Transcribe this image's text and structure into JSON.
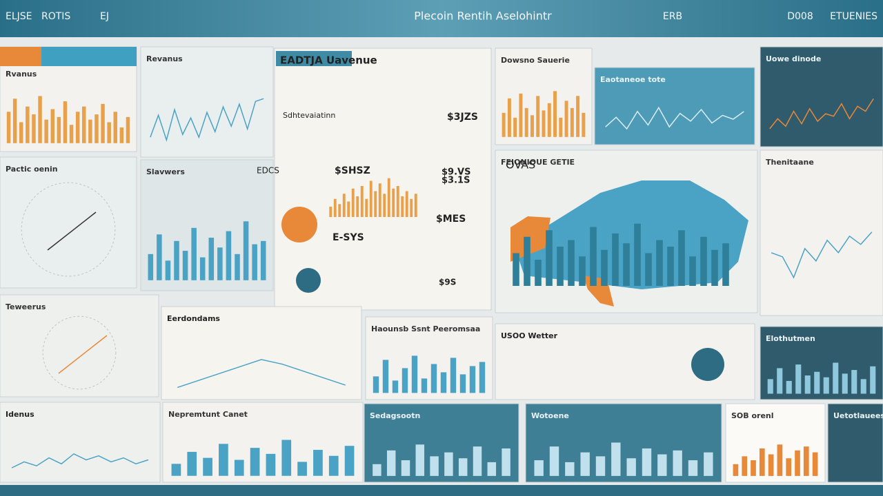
{
  "header": {
    "items": [
      "ELJSE",
      "ROTIS",
      "EJ",
      "Plecoin Rentih Aselohintr",
      "ERB",
      "D008",
      "ETUENIES"
    ]
  },
  "panels": [
    {
      "title": "Rvanus",
      "chart": {
        "type": "bar",
        "color": "#e8a04a",
        "ylim": [
          0,
          100
        ],
        "values": [
          60,
          85,
          40,
          70,
          55,
          90,
          45,
          65,
          50,
          80,
          35,
          60,
          70,
          45,
          55,
          75,
          40,
          60,
          30,
          50
        ]
      }
    },
    {
      "title": "Revanus",
      "chart": {
        "type": "line",
        "color": "#4aa3c4",
        "ylim": [
          0,
          100
        ],
        "values": [
          20,
          60,
          15,
          70,
          25,
          55,
          20,
          65,
          30,
          75,
          40,
          80,
          35,
          85,
          90
        ]
      }
    },
    {
      "title": "EADTJA Uavenue",
      "texts": [
        "Sdhtevaiatinn",
        "$3JZS",
        "$SHSZ",
        "$3.1S",
        "$9.VS",
        "E-SYS",
        "$MES",
        "$9S"
      ],
      "chart": {
        "type": "bar",
        "color": "#e8a04a",
        "ylim": [
          0,
          100
        ],
        "values": [
          20,
          35,
          25,
          45,
          30,
          55,
          40,
          60,
          35,
          70,
          50,
          65,
          45,
          75,
          55,
          60,
          40,
          50,
          35,
          45
        ]
      }
    },
    {
      "title": "Dowsno Sauerie",
      "chart": {
        "type": "bar",
        "color": "#e8a04a",
        "ylim": [
          0,
          100
        ],
        "values": [
          50,
          80,
          40,
          90,
          60,
          45,
          85,
          55,
          70,
          95,
          40,
          75,
          60,
          85,
          50
        ]
      }
    },
    {
      "title": "Eaotaneoe tote",
      "chart": {
        "type": "line",
        "color": "#d9eef5",
        "ylim": [
          0,
          100
        ],
        "values": [
          30,
          55,
          25,
          70,
          35,
          80,
          30,
          65,
          45,
          75,
          40,
          60,
          50,
          70
        ]
      }
    },
    {
      "title": "Uowe dinode",
      "chart": {
        "type": "line",
        "color": "#e8893a",
        "ylim": [
          0,
          100
        ],
        "values": [
          20,
          40,
          25,
          55,
          30,
          60,
          35,
          50,
          45,
          70,
          40,
          65,
          55,
          80
        ]
      }
    },
    {
      "title": "Pactic oenin"
    },
    {
      "title": "Slavwers",
      "texts": [
        "EDCS"
      ],
      "chart": {
        "type": "bar",
        "color": "#4aa3c4",
        "ylim": [
          0,
          100
        ],
        "values": [
          40,
          70,
          30,
          60,
          45,
          80,
          35,
          65,
          50,
          75,
          40,
          90,
          55,
          60
        ]
      }
    },
    {
      "title": "FEIONIOUE GETIE",
      "texts": [
        "OVAS"
      ],
      "chart": {
        "type": "bar",
        "color": "#2d7f9a",
        "ylim": [
          0,
          100
        ],
        "values": [
          50,
          75,
          40,
          85,
          60,
          70,
          45,
          90,
          55,
          80,
          65,
          95,
          50,
          70,
          60,
          85,
          45,
          75,
          55,
          65
        ]
      }
    },
    {
      "title": "Thenitaane",
      "chart": {
        "type": "line",
        "color": "#4aa3c4",
        "ylim": [
          0,
          100
        ],
        "values": [
          60,
          55,
          30,
          65,
          50,
          75,
          60,
          80,
          70,
          85
        ]
      }
    },
    {
      "title": "Teweerus"
    },
    {
      "title": "Eerdondams",
      "chart": {
        "type": "line",
        "color": "#4aa3c4",
        "ylim": [
          0,
          100
        ],
        "values": [
          10,
          25,
          40,
          55,
          70,
          60,
          45,
          30,
          15
        ]
      }
    },
    {
      "title": "Haounsb Ssnt Peeromsaa",
      "chart": {
        "type": "bar",
        "color": "#4aa3c4",
        "ylim": [
          0,
          100
        ],
        "values": [
          40,
          80,
          30,
          60,
          90,
          35,
          70,
          50,
          85,
          45,
          65,
          75
        ]
      }
    },
    {
      "title": "USOO Wetter"
    },
    {
      "title": "Elothutmen",
      "chart": {
        "type": "bar",
        "color": "#8fc7dc",
        "ylim": [
          0,
          100
        ],
        "values": [
          40,
          70,
          35,
          80,
          50,
          60,
          45,
          85,
          55,
          65,
          40,
          75
        ]
      }
    },
    {
      "title": "Idenus",
      "chart": {
        "type": "line",
        "color": "#4aa3c4",
        "ylim": [
          0,
          100
        ],
        "values": [
          20,
          35,
          25,
          45,
          30,
          55,
          40,
          50,
          35,
          45,
          30,
          40
        ]
      }
    },
    {
      "title": "Nepremtunt Canet",
      "chart": {
        "type": "bar",
        "color": "#4aa3c4",
        "ylim": [
          0,
          100
        ],
        "values": [
          30,
          60,
          45,
          80,
          40,
          70,
          55,
          90,
          35,
          65,
          50,
          75
        ]
      }
    },
    {
      "title": "Sedagsootn",
      "chart": {
        "type": "bar",
        "color": "#bfe0ec",
        "ylim": [
          0,
          100
        ],
        "values": [
          30,
          65,
          40,
          80,
          50,
          60,
          45,
          75,
          35,
          70
        ]
      }
    },
    {
      "title": "Wotoene",
      "chart": {
        "type": "bar",
        "color": "#bfe0ec",
        "ylim": [
          0,
          100
        ],
        "values": [
          40,
          75,
          35,
          60,
          50,
          85,
          45,
          70,
          55,
          65,
          40,
          60
        ]
      }
    },
    {
      "title": "SOB orenl",
      "chart": {
        "type": "bar",
        "color": "#e8893a",
        "ylim": [
          0,
          100
        ],
        "values": [
          30,
          50,
          40,
          70,
          55,
          80,
          45,
          65,
          75,
          60
        ]
      }
    },
    {
      "title": "Uetotlauees"
    }
  ]
}
